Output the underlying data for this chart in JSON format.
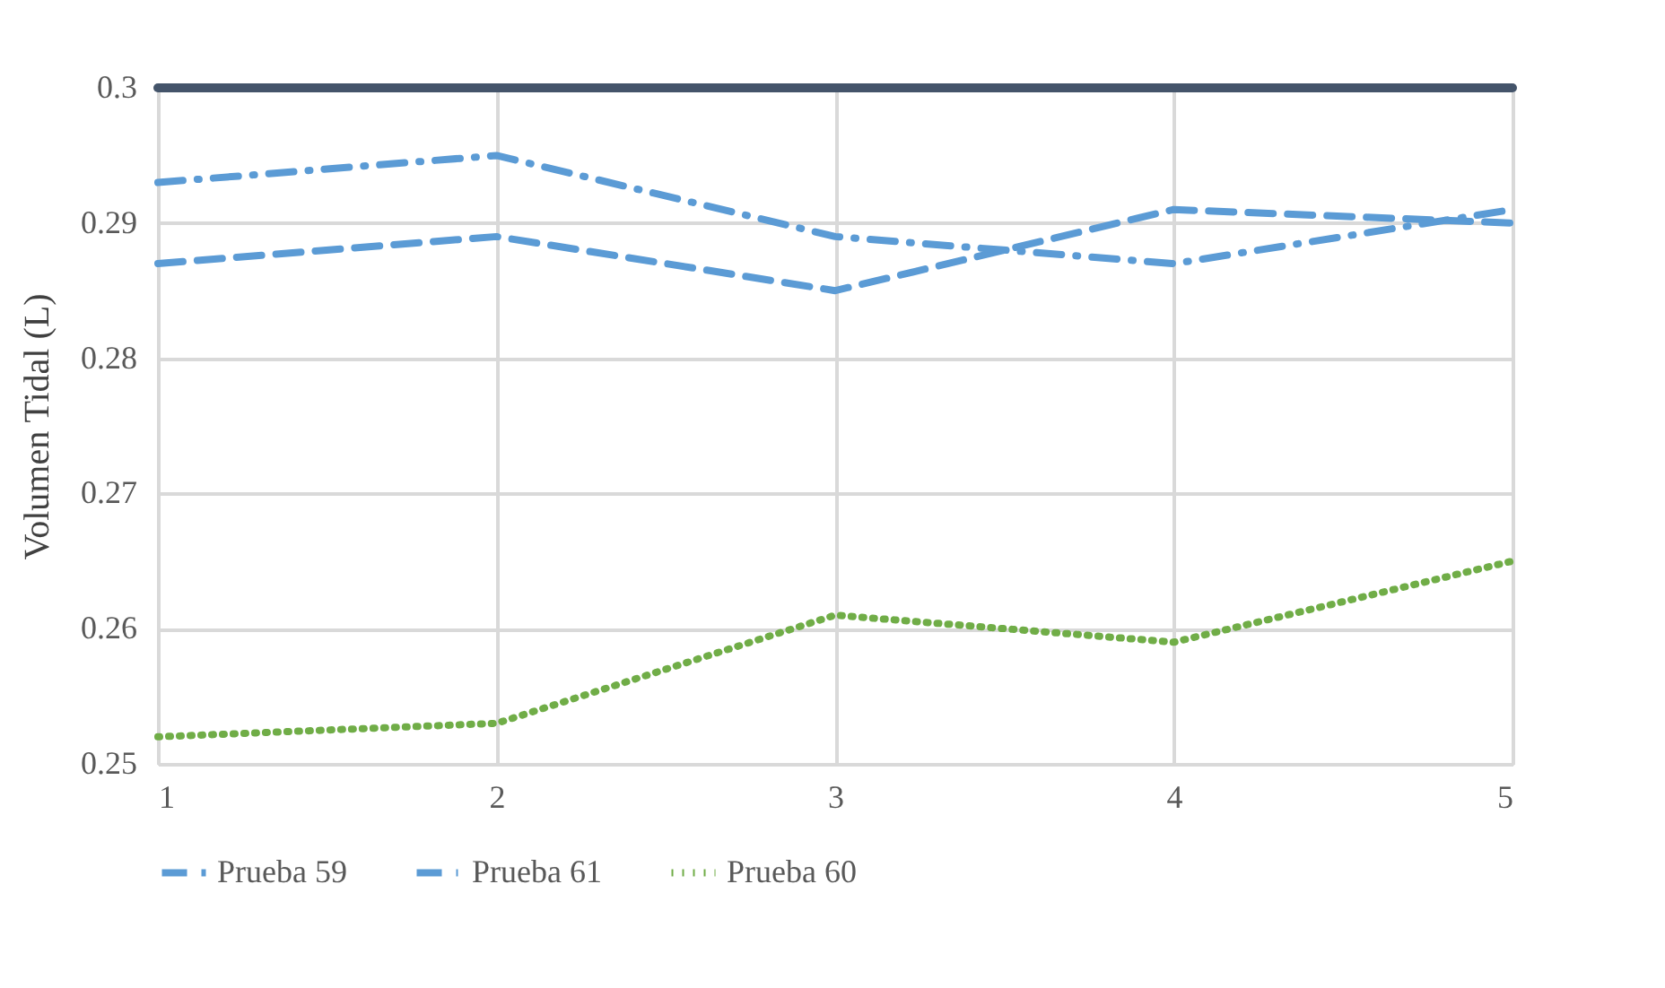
{
  "chart_data": {
    "type": "line",
    "ylabel": "Volumen Tidal (L)",
    "x": [
      1,
      2,
      3,
      4,
      5
    ],
    "series": [
      {
        "name": "Prueba 59",
        "color": "#5b9bd5",
        "line_style": "dashed",
        "values": [
          0.287,
          0.289,
          0.285,
          0.291,
          0.29
        ]
      },
      {
        "name": "Prueba 61",
        "color": "#5b9bd5",
        "line_style": "dashdot",
        "values": [
          0.293,
          0.295,
          0.289,
          0.287,
          0.291
        ]
      },
      {
        "name": "Prueba 60",
        "color": "#70ad47",
        "line_style": "dotted",
        "values": [
          0.252,
          0.253,
          0.261,
          0.259,
          0.265
        ]
      }
    ],
    "ref_lines": [
      {
        "axis": "y",
        "value": 0.3,
        "color": "#44546a",
        "line_style": "solid"
      }
    ],
    "xlim": [
      1,
      5
    ],
    "xticks": [
      1,
      2,
      3,
      4,
      5
    ],
    "ylim": [
      0.25,
      0.3
    ],
    "yticks": [
      0.25,
      0.26,
      0.27,
      0.28,
      0.29,
      0.3
    ],
    "grid": true,
    "legend": "bottom",
    "marker": "none"
  }
}
